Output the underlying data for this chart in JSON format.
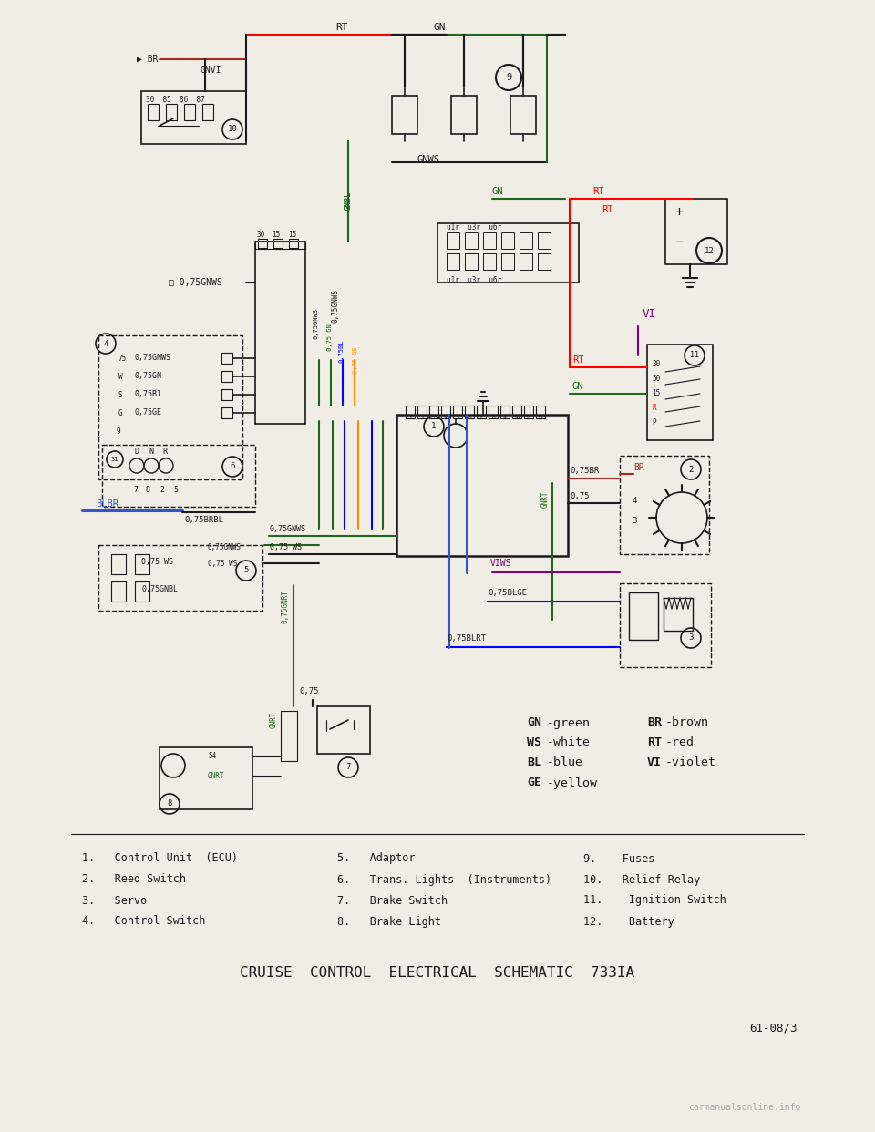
{
  "bg_color": "#f0ede5",
  "title": "CRUISE  CONTROL  ELECTRICAL  SCHEMATIC  733IA",
  "page_ref": "61-08/3",
  "watermark": "carmanualsonline.info",
  "parts_list": [
    [
      "1.   Control Unit  (ECU)",
      "5.   Adaptor",
      "9.    Fuses"
    ],
    [
      "2.   Reed Switch",
      "6.   Trans. Lights  (Instruments)",
      "10.   Relief Relay"
    ],
    [
      "3.   Servo",
      "7.   Brake Switch",
      "11.    Ignition Switch"
    ],
    [
      "4.   Control Switch",
      "8.   Brake Light",
      "12.    Battery"
    ]
  ],
  "line_color": "#1a1a1a",
  "blue_wire": "#3355cc",
  "green_wire": "#226622"
}
